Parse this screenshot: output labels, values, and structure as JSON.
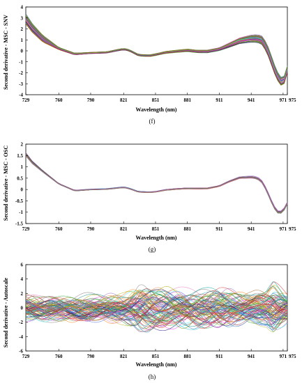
{
  "chart_data": [
    {
      "type": "line",
      "caption": "(f)",
      "xlabel": "Wavelength (nm)",
      "ylabel": "Second derivative - MSC - SNV",
      "xlim": [
        729,
        975
      ],
      "ylim": [
        -4,
        4
      ],
      "xticks": [
        729,
        760,
        790,
        821,
        851,
        881,
        911,
        941,
        971,
        975
      ],
      "yticks": [
        4,
        3,
        2,
        1,
        0,
        -1,
        -2,
        -3,
        -4
      ],
      "series_count": 60,
      "mean_curve": {
        "x": [
          729,
          735,
          745,
          760,
          775,
          790,
          805,
          815,
          821,
          826,
          835,
          845,
          851,
          860,
          870,
          881,
          890,
          900,
          911,
          920,
          930,
          941,
          947,
          952,
          958,
          962,
          967,
          971,
          975
        ],
        "y": [
          2.9,
          2.1,
          1.1,
          0.2,
          -0.3,
          -0.2,
          -0.15,
          0.05,
          0.15,
          0.05,
          -0.4,
          -0.45,
          -0.35,
          -0.15,
          -0.05,
          0.05,
          -0.05,
          -0.05,
          0.15,
          0.5,
          0.9,
          1.1,
          1.1,
          0.9,
          -0.3,
          -1.5,
          -2.6,
          -3.0,
          -1.7
        ]
      },
      "spread": {
        "x": [
          729,
          745,
          760,
          790,
          851,
          911,
          941,
          958,
          971,
          975
        ],
        "y": [
          0.45,
          0.3,
          0.1,
          0.06,
          0.08,
          0.12,
          0.3,
          0.4,
          0.35,
          0.3
        ]
      }
    },
    {
      "type": "line",
      "caption": "(g)",
      "xlabel": "Wavelength (nm)",
      "ylabel": "Second derivative - MSC - OSC",
      "xlim": [
        729,
        975
      ],
      "ylim": [
        -1.5,
        2
      ],
      "xticks": [
        729,
        760,
        790,
        821,
        851,
        881,
        911,
        941,
        971,
        975
      ],
      "yticks": [
        2,
        1.5,
        1,
        0.5,
        0,
        -0.5,
        -1,
        -1.5
      ],
      "series_count": 40,
      "mean_curve": {
        "x": [
          729,
          735,
          745,
          760,
          775,
          790,
          805,
          815,
          821,
          826,
          835,
          845,
          851,
          860,
          870,
          881,
          890,
          900,
          911,
          920,
          930,
          941,
          947,
          952,
          958,
          962,
          967,
          971,
          975
        ],
        "y": [
          1.55,
          1.2,
          0.8,
          0.25,
          -0.05,
          0.0,
          0.02,
          0.07,
          0.1,
          0.05,
          -0.1,
          -0.12,
          -0.1,
          -0.02,
          0.02,
          0.05,
          0.04,
          0.05,
          0.15,
          0.35,
          0.52,
          0.55,
          0.5,
          0.3,
          -0.3,
          -0.75,
          -1.05,
          -0.95,
          -0.6
        ]
      },
      "spread": {
        "x": [
          729,
          745,
          760,
          790,
          851,
          911,
          941,
          958,
          971,
          975
        ],
        "y": [
          0.08,
          0.04,
          0.02,
          0.02,
          0.02,
          0.03,
          0.05,
          0.06,
          0.05,
          0.05
        ]
      }
    },
    {
      "type": "line",
      "caption": "(h)",
      "xlabel": "Wavelength (nm)",
      "ylabel": "Second derivative - Autoscale",
      "xlim": [
        729,
        975
      ],
      "ylim": [
        -6,
        6
      ],
      "xticks": [
        729,
        760,
        790,
        821,
        851,
        881,
        911,
        941,
        971,
        975
      ],
      "yticks": [
        6,
        4,
        2,
        0,
        -2,
        -4,
        -6
      ],
      "series_count": 90,
      "mean_curve": {
        "x": [
          729,
          975
        ],
        "y": [
          0,
          0
        ]
      },
      "spread": {
        "x": [
          729,
          760,
          790,
          821,
          835,
          851,
          881,
          911,
          941,
          955,
          962,
          975
        ],
        "y": [
          0.9,
          0.9,
          0.9,
          1.0,
          1.6,
          1.4,
          1.3,
          1.4,
          1.0,
          1.2,
          1.8,
          1.0
        ]
      }
    }
  ]
}
